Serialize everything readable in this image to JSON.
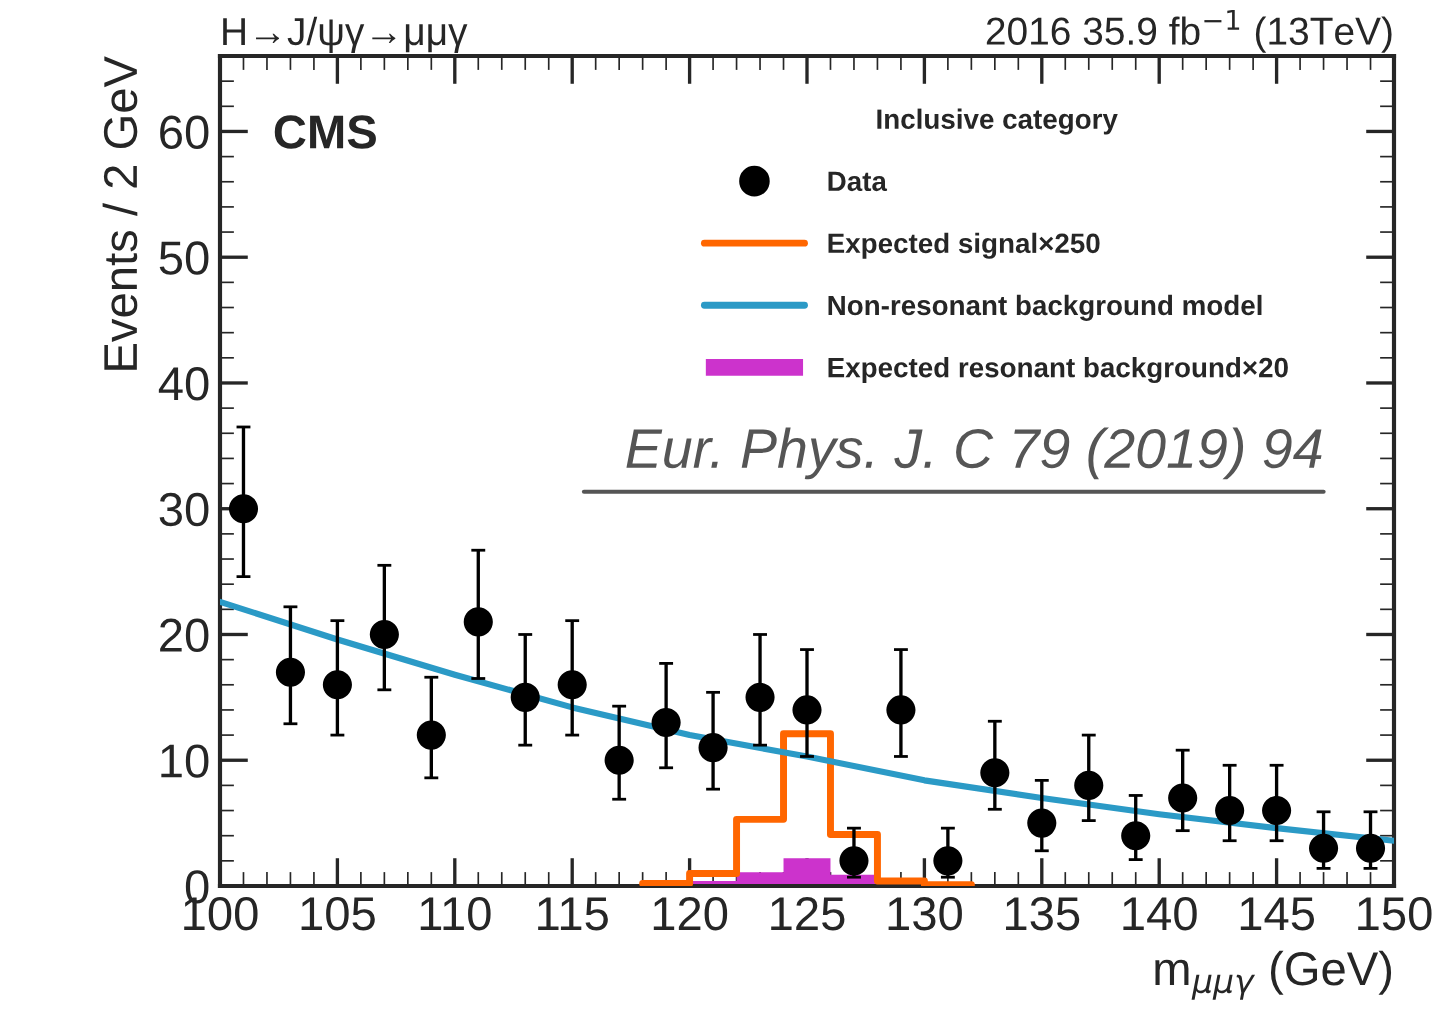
{
  "chart_data": {
    "type": "scatter",
    "title": "H→J/ψγ→μμγ",
    "subtitle": "2016 35.9 fb$^{−1}$ (13TeV)",
    "xlabel": "m$_{μμγ}$ (GeV)",
    "ylabel": "Events / 2 GeV",
    "legend_title": "Inclusive category",
    "annotations": [
      "CMS",
      "Eur. Phys. J. C 79 (2019) 94"
    ],
    "xlim": [
      100,
      150
    ],
    "xticks": [
      100,
      105,
      110,
      115,
      120,
      125,
      130,
      135,
      140,
      145,
      150
    ],
    "ylim": [
      0,
      66
    ],
    "yticks": [
      0,
      10,
      20,
      30,
      40,
      50,
      60
    ],
    "legend": "top right",
    "grid": false,
    "series": [
      {
        "name": "Data",
        "color": "#000000",
        "marker": "circle",
        "x": [
          101,
          103,
          105,
          107,
          109,
          111,
          113,
          115,
          117,
          119,
          121,
          123,
          125,
          127,
          129,
          131,
          133,
          135,
          137,
          139,
          141,
          143,
          145,
          147,
          149
        ],
        "values": [
          30,
          17,
          16,
          20,
          12,
          21,
          15,
          16,
          10,
          13,
          11,
          15,
          14,
          2,
          14,
          2,
          9,
          5,
          8,
          4,
          7,
          6,
          6,
          3,
          3
        ],
        "errors": [
          [
            24.6,
            36.5
          ],
          [
            12.9,
            22.2
          ],
          [
            12.0,
            21.1
          ],
          [
            15.6,
            25.5
          ],
          [
            8.6,
            16.6
          ],
          [
            16.5,
            26.7
          ],
          [
            11.2,
            20.0
          ],
          [
            12.0,
            21.1
          ],
          [
            6.9,
            14.3
          ],
          [
            9.4,
            17.7
          ],
          [
            7.7,
            15.4
          ],
          [
            11.2,
            20.0
          ],
          [
            10.3,
            18.8
          ],
          [
            0.7,
            4.6
          ],
          [
            10.3,
            18.8
          ],
          [
            0.7,
            4.6
          ],
          [
            6.1,
            13.1
          ],
          [
            2.8,
            8.4
          ],
          [
            5.2,
            12.0
          ],
          [
            2.1,
            7.2
          ],
          [
            4.4,
            10.8
          ],
          [
            3.6,
            9.6
          ],
          [
            3.6,
            9.6
          ],
          [
            1.4,
            5.9
          ],
          [
            1.4,
            5.9
          ]
        ]
      },
      {
        "name": "Expected signal×250",
        "type": "step",
        "color": "#ff6600",
        "x": [
          118,
          120,
          122,
          124,
          126,
          128,
          130,
          132
        ],
        "values": [
          0.2,
          1.0,
          5.3,
          12.1,
          4.1,
          0.4,
          0.1,
          0.1
        ]
      },
      {
        "name": "Non-resonant background model",
        "type": "line",
        "color": "#2b9ac6",
        "x": [
          100,
          105,
          110,
          115,
          120,
          125,
          130,
          135,
          140,
          145,
          150
        ],
        "values": [
          22.6,
          19.6,
          16.8,
          14.2,
          12.0,
          10.3,
          8.4,
          7.0,
          5.7,
          4.6,
          3.6
        ]
      },
      {
        "name": "Expected resonant background×20",
        "type": "histogram",
        "color": "#cc33cc",
        "bins": [
          120,
          122,
          124,
          126,
          128,
          130
        ],
        "values": [
          0.4,
          1.1,
          2.2,
          0.9,
          0.3
        ]
      }
    ]
  }
}
